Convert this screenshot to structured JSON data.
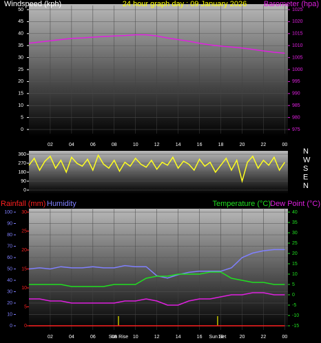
{
  "chart_data": [
    {
      "type": "line",
      "title": "24 hour graph day : 09 January 2026",
      "y_label": "Windspeed (kph)",
      "xlim": [
        0,
        24.3
      ],
      "xticks": [
        {
          "value": 2,
          "label": "02"
        },
        {
          "value": 4,
          "label": "04"
        },
        {
          "value": 6,
          "label": "06"
        },
        {
          "value": 8,
          "label": "08"
        },
        10,
        12,
        14,
        16,
        18,
        20,
        22,
        {
          "value": 24,
          "label": "00"
        }
      ],
      "ylim": [
        0,
        50
      ],
      "yticks": [
        0,
        5,
        10,
        15,
        20,
        25,
        30,
        35,
        40,
        45,
        50
      ],
      "y2lim": [
        975,
        1025
      ],
      "y2ticks": [
        975,
        980,
        985,
        990,
        995,
        1000,
        1005,
        1010,
        1015,
        1020,
        1025
      ],
      "grid": true,
      "x": [
        0,
        1,
        2,
        3,
        4,
        5,
        6,
        7,
        8,
        9,
        10,
        11,
        12,
        13,
        14,
        15,
        16,
        17,
        18,
        19,
        20,
        21,
        22,
        23,
        24
      ],
      "series": [
        {
          "name": "Barometer (hpa)",
          "color": "#e020e0",
          "axis": "y2",
          "values": [
            1011,
            1011.5,
            1012,
            1012.5,
            1013,
            1013.2,
            1013.5,
            1013.8,
            1014,
            1014.2,
            1014.5,
            1014.5,
            1014,
            1013.2,
            1012.5,
            1011.8,
            1011,
            1010.3,
            1009.8,
            1009.4,
            1009,
            1008.4,
            1007.8,
            1007.2,
            1006.8
          ]
        }
      ]
    },
    {
      "type": "line",
      "xlim": [
        0,
        24.3
      ],
      "ylim": [
        0,
        360
      ],
      "yticks": [
        0,
        90,
        180,
        270,
        360
      ],
      "grid": true,
      "compass_labels": [
        "N",
        "W",
        "S",
        "E",
        "N"
      ],
      "x": [
        0,
        0.5,
        1,
        1.5,
        2,
        2.5,
        3,
        3.5,
        4,
        4.5,
        5,
        5.5,
        6,
        6.5,
        7,
        7.5,
        8,
        8.5,
        9,
        9.5,
        10,
        10.5,
        11,
        11.5,
        12,
        12.5,
        13,
        13.5,
        14,
        14.5,
        15,
        15.5,
        16,
        16.5,
        17,
        17.5,
        18,
        18.5,
        19,
        19.5,
        20,
        20.5,
        21,
        21.5,
        22,
        22.5,
        23,
        23.5,
        24
      ],
      "series": [
        {
          "name": "Wind Direction",
          "color": "#ffff20",
          "values": [
            250,
            320,
            200,
            290,
            340,
            220,
            300,
            180,
            330,
            270,
            240,
            310,
            200,
            350,
            260,
            220,
            300,
            190,
            280,
            240,
            320,
            260,
            230,
            300,
            210,
            280,
            250,
            330,
            220,
            290,
            260,
            200,
            310,
            240,
            280,
            180,
            250,
            320,
            200,
            300,
            90,
            280,
            340,
            220,
            300,
            250,
            330,
            200,
            280
          ]
        }
      ]
    },
    {
      "type": "line",
      "xlim": [
        0,
        24.3
      ],
      "xticks": [
        {
          "value": 2,
          "label": "02"
        },
        {
          "value": 4,
          "label": "04"
        },
        {
          "value": 6,
          "label": "06"
        },
        {
          "value": 8,
          "label": "08"
        },
        10,
        12,
        14,
        16,
        18,
        20,
        22,
        {
          "value": 24,
          "label": "00"
        }
      ],
      "ylim": [
        0,
        100
      ],
      "yticks": [
        0,
        10,
        20,
        30,
        40,
        50,
        60,
        70,
        80,
        90,
        100
      ],
      "rain_ylim": [
        0,
        30
      ],
      "rain_yticks": [
        0,
        5,
        10,
        15,
        20,
        25,
        30
      ],
      "y2lim": [
        -15,
        40
      ],
      "y2ticks": [
        -15,
        -10,
        -5,
        0,
        5,
        10,
        15,
        20,
        25,
        30,
        35,
        40
      ],
      "grid": true,
      "markers": [
        {
          "label": "Sun Rise",
          "x": 8.4
        },
        {
          "label": "Sun Set",
          "x": 17.7
        }
      ],
      "marker_color": "#c0c000",
      "x": [
        0,
        1,
        2,
        3,
        4,
        5,
        6,
        7,
        8,
        9,
        10,
        11,
        12,
        13,
        14,
        15,
        16,
        17,
        18,
        19,
        20,
        21,
        22,
        23,
        24
      ],
      "series": [
        {
          "name": "Rainfall (mm)",
          "color": "#ff2020",
          "axis": "rain",
          "values": [
            0,
            0,
            0,
            0,
            0,
            0,
            0,
            0,
            0,
            0,
            0,
            0,
            0,
            0,
            0,
            0,
            0,
            0,
            0,
            0,
            0,
            0,
            0,
            0,
            0
          ]
        },
        {
          "name": "Humidity",
          "color": "#8080ff",
          "values": [
            50,
            51,
            50,
            52,
            51,
            51,
            52,
            51,
            51,
            53,
            52,
            52,
            44,
            42,
            45,
            47,
            48,
            48,
            48,
            51,
            60,
            64,
            66,
            67,
            67
          ]
        },
        {
          "name": "Temperature (°C)",
          "color": "#20e020",
          "axis": "y2",
          "values": [
            5,
            5,
            5,
            5,
            4,
            4,
            4,
            4,
            5,
            5,
            5,
            8,
            9,
            9,
            10,
            10,
            10,
            11,
            11,
            8,
            7,
            6,
            6,
            5,
            5
          ]
        },
        {
          "name": "Dew Point (°C)",
          "color": "#e020e0",
          "axis": "y2",
          "values": [
            -2,
            -2,
            -3,
            -3,
            -4,
            -4,
            -4,
            -4,
            -4,
            -3,
            -3,
            -2,
            -3,
            -5,
            -5,
            -3,
            -2,
            -2,
            -1,
            0,
            0,
            1,
            1,
            0,
            0
          ]
        }
      ]
    }
  ]
}
